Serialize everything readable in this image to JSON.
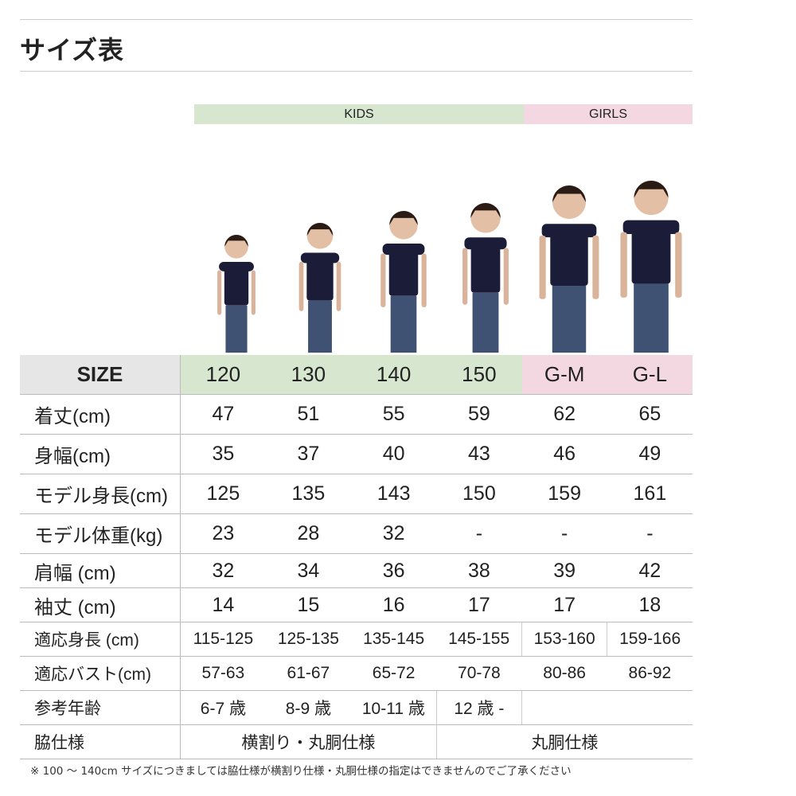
{
  "title": "サイズ表",
  "groups": {
    "kids": "KIDS",
    "girls": "GIRLS",
    "kids_color": "#d6e6cf",
    "girls_color": "#f3d8e1"
  },
  "size_label": "SIZE",
  "sizes": [
    "120",
    "130",
    "140",
    "150",
    "G-M",
    "G-L"
  ],
  "rows": [
    {
      "label": "着丈(cm)",
      "values": [
        "47",
        "51",
        "55",
        "59",
        "62",
        "65"
      ]
    },
    {
      "label": "身幅(cm)",
      "values": [
        "35",
        "37",
        "40",
        "43",
        "46",
        "49"
      ]
    },
    {
      "label": "モデル身長(cm)",
      "values": [
        "125",
        "135",
        "143",
        "150",
        "159",
        "161"
      ]
    },
    {
      "label": "モデル体重(kg)",
      "values": [
        "23",
        "28",
        "32",
        "-",
        "-",
        "-"
      ]
    },
    {
      "label": "肩幅 (cm)",
      "values": [
        "32",
        "34",
        "36",
        "38",
        "39",
        "42"
      ]
    },
    {
      "label": "袖丈 (cm)",
      "values": [
        "14",
        "15",
        "16",
        "17",
        "17",
        "18"
      ]
    },
    {
      "label": "適応身長 (cm)",
      "values": [
        "115-125",
        "125-135",
        "135-145",
        "145-155",
        "153-160",
        "159-166"
      ]
    },
    {
      "label": "適応バスト(cm)",
      "values": [
        "57-63",
        "61-67",
        "65-72",
        "70-78",
        "80-86",
        "86-92"
      ]
    },
    {
      "label": "参考年齢",
      "values": [
        "6-7 歳",
        "8-9 歳",
        "10-11 歳",
        "12 歳 -"
      ]
    },
    {
      "label": "脇仕様",
      "values": [
        "横割り・丸胴仕様",
        "丸胴仕様"
      ]
    }
  ],
  "note": "※ 100 〜 140cm サイズにつきましては脇仕様が横割り仕様・丸胴仕様の指定はできませんのでご了承ください"
}
